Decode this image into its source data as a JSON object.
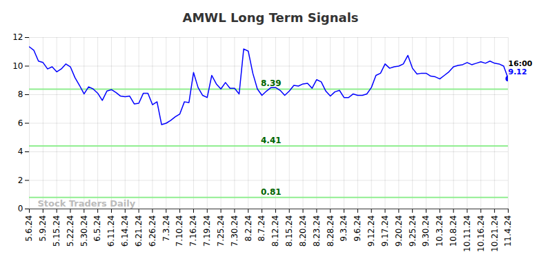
{
  "chart_data": {
    "type": "line",
    "title": "AMWL Long Term Signals",
    "categories": [
      "5.6.24",
      null,
      null,
      "5.9.24",
      null,
      null,
      "5.15.24",
      null,
      null,
      "5.22.24",
      null,
      null,
      "5.30.24",
      null,
      null,
      "6.5.24",
      null,
      null,
      "6.11.24",
      null,
      null,
      "6.14.24",
      null,
      null,
      "6.21.24",
      null,
      null,
      "6.26.24",
      null,
      null,
      "7.3.24",
      null,
      null,
      "7.10.24",
      null,
      null,
      "7.16.24",
      null,
      null,
      "7.19.24",
      null,
      null,
      "7.25.24",
      null,
      null,
      "7.30.24",
      null,
      null,
      "8.2.24",
      null,
      null,
      "8.7.24",
      null,
      null,
      "8.12.24",
      null,
      null,
      "8.15.24",
      null,
      null,
      "8.20.24",
      null,
      null,
      "8.23.24",
      null,
      null,
      "8.28.24",
      null,
      null,
      "9.3.24",
      null,
      null,
      "9.6.24",
      null,
      null,
      "9.12.24",
      null,
      null,
      "9.17.24",
      null,
      null,
      "9.20.24",
      null,
      null,
      "9.25.24",
      null,
      null,
      "9.30.24",
      null,
      null,
      "10.3.24",
      null,
      null,
      "10.8.24",
      null,
      null,
      "10.11.24",
      null,
      null,
      "10.16.24",
      null,
      null,
      "10.21.24",
      null,
      null,
      "11.4.24"
    ],
    "values": [
      11.35,
      11.1,
      10.35,
      10.25,
      9.8,
      9.95,
      9.6,
      9.8,
      10.15,
      9.95,
      9.2,
      8.65,
      8.05,
      8.55,
      8.4,
      8.1,
      7.6,
      8.25,
      8.35,
      8.15,
      7.9,
      7.85,
      7.9,
      7.35,
      7.4,
      8.1,
      8.1,
      7.3,
      7.5,
      5.9,
      6.0,
      6.2,
      6.45,
      6.65,
      7.5,
      7.45,
      9.55,
      8.5,
      7.95,
      7.8,
      9.35,
      8.75,
      8.4,
      8.85,
      8.45,
      8.45,
      8.05,
      11.2,
      11.05,
      9.5,
      8.4,
      7.95,
      8.25,
      8.5,
      8.5,
      8.3,
      7.95,
      8.25,
      8.65,
      8.6,
      8.75,
      8.8,
      8.45,
      9.05,
      8.9,
      8.25,
      7.9,
      8.2,
      8.3,
      7.8,
      7.8,
      8.05,
      7.95,
      7.95,
      8.05,
      8.5,
      9.35,
      9.5,
      10.15,
      9.85,
      9.95,
      10.0,
      10.15,
      10.75,
      9.85,
      9.45,
      9.5,
      9.5,
      9.3,
      9.25,
      9.1,
      9.35,
      9.6,
      9.95,
      10.05,
      10.1,
      10.25,
      10.1,
      10.2,
      10.3,
      10.2,
      10.35,
      10.2,
      10.15,
      10.0,
      9.12
    ],
    "color": "#0000ff",
    "ylim": [
      0,
      12
    ],
    "yticks": [
      0,
      2,
      4,
      6,
      8,
      10,
      12
    ],
    "grid": true,
    "levels": [
      8.39,
      4.41,
      0.81
    ],
    "last_time": "16:00",
    "watermark": "Stock Traders Daily"
  }
}
